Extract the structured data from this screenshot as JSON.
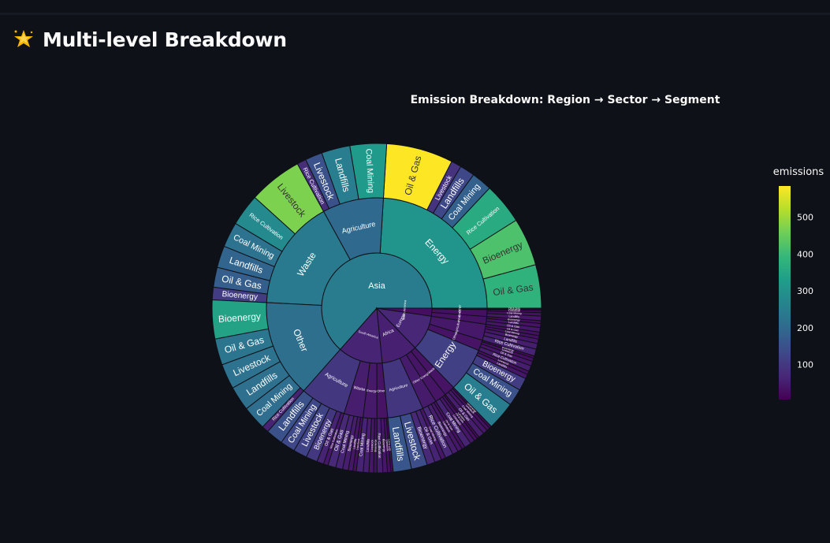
{
  "page": {
    "title": "Multi-level Breakdown",
    "title_icon": "glowing-star-icon"
  },
  "chart_data": {
    "type": "sunburst",
    "title": "Emission Breakdown: Region → Sector → Segment",
    "colorbar": {
      "title": "emissions",
      "colorscale": "viridis",
      "range": [
        5,
        585
      ],
      "ticks": [
        100,
        200,
        300,
        400,
        500
      ]
    },
    "root_label": "Asia",
    "regions": [
      {
        "name": "Asia",
        "sectors": [
          {
            "name": "Energy",
            "segments": [
              {
                "name": "Oil & Gas",
                "value": 380
              },
              {
                "name": "Bioenergy",
                "value": 420
              },
              {
                "name": "Rice Cultivation",
                "value": 360
              },
              {
                "name": "Coal Mining",
                "value": 180
              },
              {
                "name": "Landfills",
                "value": 130
              },
              {
                "name": "Livestock",
                "value": 90
              },
              {
                "name": "Oil & Gas",
                "value": 585
              }
            ]
          },
          {
            "name": "Agriculture",
            "segments": [
              {
                "name": "Coal Mining",
                "value": 320
              },
              {
                "name": "Landfills",
                "value": 250
              },
              {
                "name": "Livestock",
                "value": 150
              },
              {
                "name": "Rice Cultivation",
                "value": 80
              }
            ]
          },
          {
            "name": "Waste",
            "segments": [
              {
                "name": "Livestock",
                "value": 470
              },
              {
                "name": "Rice Cultivation",
                "value": 280
              },
              {
                "name": "Coal Mining",
                "value": 220
              },
              {
                "name": "Landfills",
                "value": 190
              },
              {
                "name": "Oil & Gas",
                "value": 175
              },
              {
                "name": "Bioenergy",
                "value": 110
              }
            ]
          },
          {
            "name": "Other",
            "segments": [
              {
                "name": "Bioenergy",
                "value": 340
              },
              {
                "name": "Oil & Gas",
                "value": 230
              },
              {
                "name": "Livestock",
                "value": 220
              },
              {
                "name": "Landfills",
                "value": 215
              },
              {
                "name": "Coal Mining",
                "value": 210
              },
              {
                "name": "Rice Cultivation",
                "value": 60
              }
            ]
          }
        ]
      },
      {
        "name": "South America",
        "sectors": [
          {
            "name": "Agriculture",
            "segments": [
              {
                "name": "Landfills",
                "value": 150
              },
              {
                "name": "Coal Mining",
                "value": 130
              },
              {
                "name": "Livestock",
                "value": 120
              },
              {
                "name": "Bioenergy",
                "value": 100
              },
              {
                "name": "Oil & Gas",
                "value": 60
              },
              {
                "name": "Rice Cultivation",
                "value": 40
              }
            ]
          },
          {
            "name": "Waste",
            "segments": [
              {
                "name": "Oil & Gas",
                "value": 70
              },
              {
                "name": "Coal Mining",
                "value": 60
              },
              {
                "name": "Bioenergy",
                "value": 50
              },
              {
                "name": "Landfills",
                "value": 40
              },
              {
                "name": "Livestock",
                "value": 30
              }
            ]
          },
          {
            "name": "Energy",
            "segments": [
              {
                "name": "Coal Mining",
                "value": 60
              },
              {
                "name": "Landfills",
                "value": 50
              },
              {
                "name": "Livestock",
                "value": 40
              },
              {
                "name": "Bioenergy",
                "value": 30
              }
            ]
          },
          {
            "name": "Other",
            "segments": [
              {
                "name": "Rice Cultivation",
                "value": 50
              },
              {
                "name": "Bioenergy",
                "value": 40
              },
              {
                "name": "Livestock",
                "value": 30
              },
              {
                "name": "Oil & Gas",
                "value": 20
              }
            ]
          }
        ]
      },
      {
        "name": "Africa",
        "sectors": [
          {
            "name": "Agriculture",
            "segments": [
              {
                "name": "Landfills",
                "value": 160
              },
              {
                "name": "Livestock",
                "value": 140
              },
              {
                "name": "Bioenergy",
                "value": 70
              },
              {
                "name": "Oil & Gas",
                "value": 60
              },
              {
                "name": "Coal Mining",
                "value": 40
              }
            ]
          },
          {
            "name": "Other",
            "segments": [
              {
                "name": "Rice Cultivation",
                "value": 70
              },
              {
                "name": "Bioenergy",
                "value": 50
              },
              {
                "name": "Livestock",
                "value": 40
              },
              {
                "name": "Oil & Gas",
                "value": 30
              }
            ]
          },
          {
            "name": "Energy",
            "segments": [
              {
                "name": "Coal Mining",
                "value": 60
              },
              {
                "name": "Livestock",
                "value": 40
              },
              {
                "name": "Oil & Gas",
                "value": 30
              },
              {
                "name": "Landfills",
                "value": 20
              }
            ]
          },
          {
            "name": "Waste",
            "segments": [
              {
                "name": "Oil & Gas",
                "value": 50
              },
              {
                "name": "Coal Mining",
                "value": 40
              },
              {
                "name": "Livestock",
                "value": 30
              },
              {
                "name": "Bioenergy",
                "value": 20
              }
            ]
          }
        ]
      },
      {
        "name": "Europe",
        "sectors": [
          {
            "name": "Energy",
            "segments": [
              {
                "name": "Oil & Gas",
                "value": 250
              },
              {
                "name": "Coal Mining",
                "value": 150
              },
              {
                "name": "Bioenergy",
                "value": 110
              },
              {
                "name": "Landfills",
                "value": 40
              },
              {
                "name": "Livestock",
                "value": 30
              }
            ]
          },
          {
            "name": "Other",
            "segments": [
              {
                "name": "Rice Cultivation",
                "value": 50
              },
              {
                "name": "Oil & Gas",
                "value": 40
              },
              {
                "name": "Livestock",
                "value": 30
              },
              {
                "name": "Bioenergy",
                "value": 20
              }
            ]
          },
          {
            "name": "Agriculture",
            "segments": [
              {
                "name": "Rice Cultivation",
                "value": 60
              },
              {
                "name": "Landfills",
                "value": 50
              },
              {
                "name": "Bioenergy",
                "value": 40
              },
              {
                "name": "Coal Mining",
                "value": 30
              },
              {
                "name": "Oil & Gas",
                "value": 30
              }
            ]
          }
        ]
      },
      {
        "name": "North America",
        "sectors": [
          {
            "name": "Waste",
            "segments": [
              {
                "name": "Oil & Gas",
                "value": 40
              },
              {
                "name": "Landfills",
                "value": 35
              },
              {
                "name": "Bioenergy",
                "value": 25
              }
            ]
          },
          {
            "name": "Energy",
            "segments": [
              {
                "name": "Landfills",
                "value": 40
              },
              {
                "name": "Coal Mining",
                "value": 30
              },
              {
                "name": "Livestock",
                "value": 20
              }
            ]
          },
          {
            "name": "Other",
            "segments": [
              {
                "name": "Bioenergy",
                "value": 10
              },
              {
                "name": "Oil & Gas",
                "value": 8
              }
            ]
          }
        ]
      }
    ]
  }
}
